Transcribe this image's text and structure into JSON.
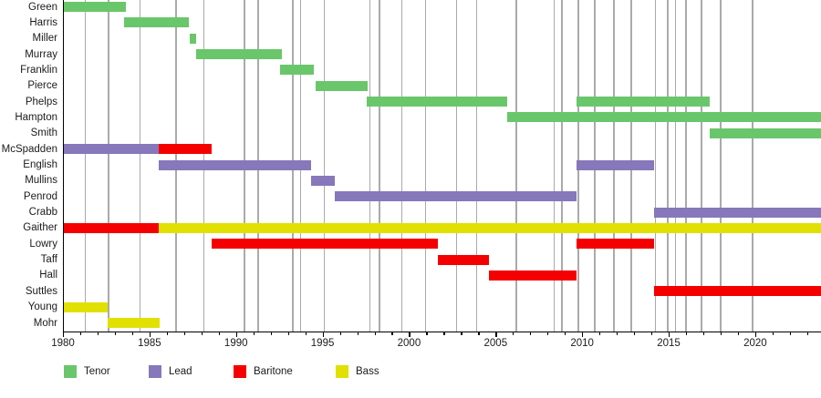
{
  "chart_data": {
    "type": "bar",
    "variant": "gantt-membership-timeline",
    "title": "",
    "xlabel": "",
    "ylabel": "",
    "x_axis": {
      "min": 1980,
      "max": 2023.8,
      "major_ticks": [
        1980,
        1985,
        1990,
        1995,
        2000,
        2005,
        2010,
        2015,
        2020
      ],
      "major_tick_labels": [
        "1980",
        "1985",
        "1990",
        "1995",
        "2000",
        "2005",
        "2010",
        "2015",
        "2020"
      ],
      "minor_tick_step": 1,
      "minor_tick_start": 1980,
      "minor_tick_end": 2023
    },
    "roles": {
      "tenor": {
        "label": "Tenor",
        "color": "#6AC66A"
      },
      "lead": {
        "label": "Lead",
        "color": "#8678BA"
      },
      "baritone": {
        "label": "Baritone",
        "color": "#F50000"
      },
      "bass": {
        "label": "Bass",
        "color": "#E2E000"
      }
    },
    "legend_order": [
      "tenor",
      "lead",
      "baritone",
      "bass"
    ],
    "rows": [
      {
        "label": "Green",
        "segments": [
          {
            "role": "tenor",
            "start": 1980.0,
            "end": 1983.6
          }
        ]
      },
      {
        "label": "Harris",
        "segments": [
          {
            "role": "tenor",
            "start": 1983.5,
            "end": 1987.2
          }
        ]
      },
      {
        "label": "Miller",
        "segments": [
          {
            "role": "tenor",
            "start": 1987.25,
            "end": 1987.65
          }
        ]
      },
      {
        "label": "Murray",
        "segments": [
          {
            "role": "tenor",
            "start": 1987.65,
            "end": 1992.6
          }
        ]
      },
      {
        "label": "Franklin",
        "segments": [
          {
            "role": "tenor",
            "start": 1992.5,
            "end": 1994.45
          }
        ]
      },
      {
        "label": "Pierce",
        "segments": [
          {
            "role": "tenor",
            "start": 1994.55,
            "end": 1997.55
          }
        ]
      },
      {
        "label": "Phelps",
        "segments": [
          {
            "role": "tenor",
            "start": 1997.5,
            "end": 2005.6
          },
          {
            "role": "tenor",
            "start": 2009.6,
            "end": 2017.3
          }
        ]
      },
      {
        "label": "Hampton",
        "segments": [
          {
            "role": "tenor",
            "start": 2005.6,
            "end": 2024.0
          }
        ]
      },
      {
        "label": "Smith",
        "segments": [
          {
            "role": "tenor",
            "start": 2017.3,
            "end": 2024.0
          }
        ]
      },
      {
        "label": "McSpadden",
        "segments": [
          {
            "role": "lead",
            "start": 1980.0,
            "end": 1985.5
          },
          {
            "role": "baritone",
            "start": 1985.5,
            "end": 1988.55
          }
        ]
      },
      {
        "label": "English",
        "segments": [
          {
            "role": "lead",
            "start": 1985.5,
            "end": 1994.3
          },
          {
            "role": "lead",
            "start": 2009.6,
            "end": 2014.1
          }
        ]
      },
      {
        "label": "Mullins",
        "segments": [
          {
            "role": "lead",
            "start": 1994.3,
            "end": 1995.65
          }
        ]
      },
      {
        "label": "Penrod",
        "segments": [
          {
            "role": "lead",
            "start": 1995.65,
            "end": 2009.6
          }
        ]
      },
      {
        "label": "Crabb",
        "segments": [
          {
            "role": "lead",
            "start": 2014.1,
            "end": 2024.0
          }
        ]
      },
      {
        "label": "Gaither",
        "segments": [
          {
            "role": "baritone",
            "start": 1980.0,
            "end": 1985.5
          },
          {
            "role": "bass",
            "start": 1985.5,
            "end": 2024.0
          }
        ]
      },
      {
        "label": "Lowry",
        "segments": [
          {
            "role": "baritone",
            "start": 1988.55,
            "end": 2001.6
          },
          {
            "role": "baritone",
            "start": 2009.6,
            "end": 2014.1
          }
        ]
      },
      {
        "label": "Taff",
        "segments": [
          {
            "role": "baritone",
            "start": 2001.6,
            "end": 2004.55
          }
        ]
      },
      {
        "label": "Hall",
        "segments": [
          {
            "role": "baritone",
            "start": 2004.55,
            "end": 2009.6
          }
        ]
      },
      {
        "label": "Suttles",
        "segments": [
          {
            "role": "baritone",
            "start": 2014.1,
            "end": 2024.0
          }
        ]
      },
      {
        "label": "Young",
        "segments": [
          {
            "role": "bass",
            "start": 1980.0,
            "end": 1982.55
          }
        ]
      },
      {
        "label": "Mohr",
        "segments": [
          {
            "role": "bass",
            "start": 1982.55,
            "end": 1985.55
          }
        ]
      }
    ],
    "gridlines": [
      {
        "year": 1981.2
      },
      {
        "year": 1982.55
      },
      {
        "year": 1984.35
      },
      {
        "year": 1986.45
      },
      {
        "year": 1988.05
      },
      {
        "year": 1990.4
      },
      {
        "year": 1991.2
      },
      {
        "year": 1993.2
      },
      {
        "year": 1993.65
      },
      {
        "year": 1995.0
      },
      {
        "year": 1997.65
      },
      {
        "year": 1998.2
      },
      {
        "year": 1999.5
      },
      {
        "year": 2000.85
      },
      {
        "year": 2002.65
      },
      {
        "year": 2003.8
      },
      {
        "year": 2006.1
      },
      {
        "year": 2008.3
      },
      {
        "year": 2008.75
      },
      {
        "year": 2009.7
      },
      {
        "year": 2010.6,
        "thick": true
      },
      {
        "year": 2011.75
      },
      {
        "year": 2012.75
      },
      {
        "year": 2014.15
      },
      {
        "year": 2014.85
      },
      {
        "year": 2015.3
      },
      {
        "year": 2015.9
      },
      {
        "year": 2016.8
      },
      {
        "year": 2017.9
      },
      {
        "year": 2019.75
      }
    ],
    "legend": [
      {
        "label": "Tenor",
        "color": "#6AC66A"
      },
      {
        "label": "Lead",
        "color": "#8678BA"
      },
      {
        "label": "Baritone",
        "color": "#F50000"
      },
      {
        "label": "Bass",
        "color": "#E2E000"
      }
    ],
    "style": {
      "gridline_color": "#AAAAAA",
      "axis_color": "#000000",
      "text_color": "#1B1B1B",
      "background": "#FFFFFF",
      "legend_position": "bottom-left",
      "grid_on": true
    }
  }
}
